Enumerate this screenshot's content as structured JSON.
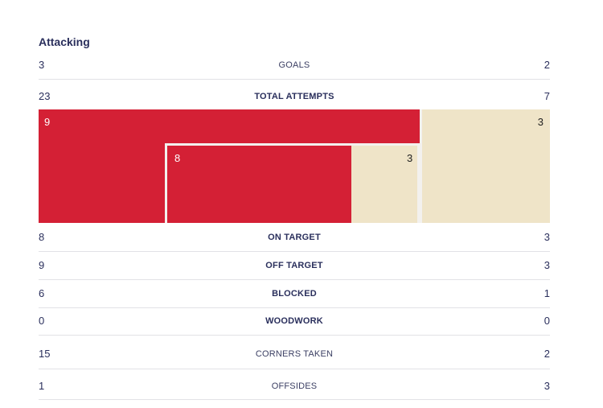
{
  "section_title": "Attacking",
  "rows_top": [
    {
      "label": "GOALS",
      "home": "3",
      "away": "2",
      "bold": false
    },
    {
      "label": "TOTAL ATTEMPTS",
      "home": "23",
      "away": "7",
      "bold": true
    }
  ],
  "attempts_chart": {
    "outer_home": "9",
    "outer_away": "3",
    "inner_home": "8",
    "inner_away": "3",
    "colors": {
      "home": "#d42035",
      "away": "#efe4c8",
      "frame": "#f3f1ee"
    }
  },
  "rows_bottom": [
    {
      "label": "ON TARGET",
      "home": "8",
      "away": "3",
      "bold": true
    },
    {
      "label": "OFF TARGET",
      "home": "9",
      "away": "3",
      "bold": true
    },
    {
      "label": "BLOCKED",
      "home": "6",
      "away": "1",
      "bold": true
    },
    {
      "label": "WOODWORK",
      "home": "0",
      "away": "0",
      "bold": true
    },
    {
      "label": "CORNERS TAKEN",
      "home": "15",
      "away": "2",
      "bold": false
    },
    {
      "label": "OFFSIDES",
      "home": "1",
      "away": "3",
      "bold": false
    }
  ]
}
